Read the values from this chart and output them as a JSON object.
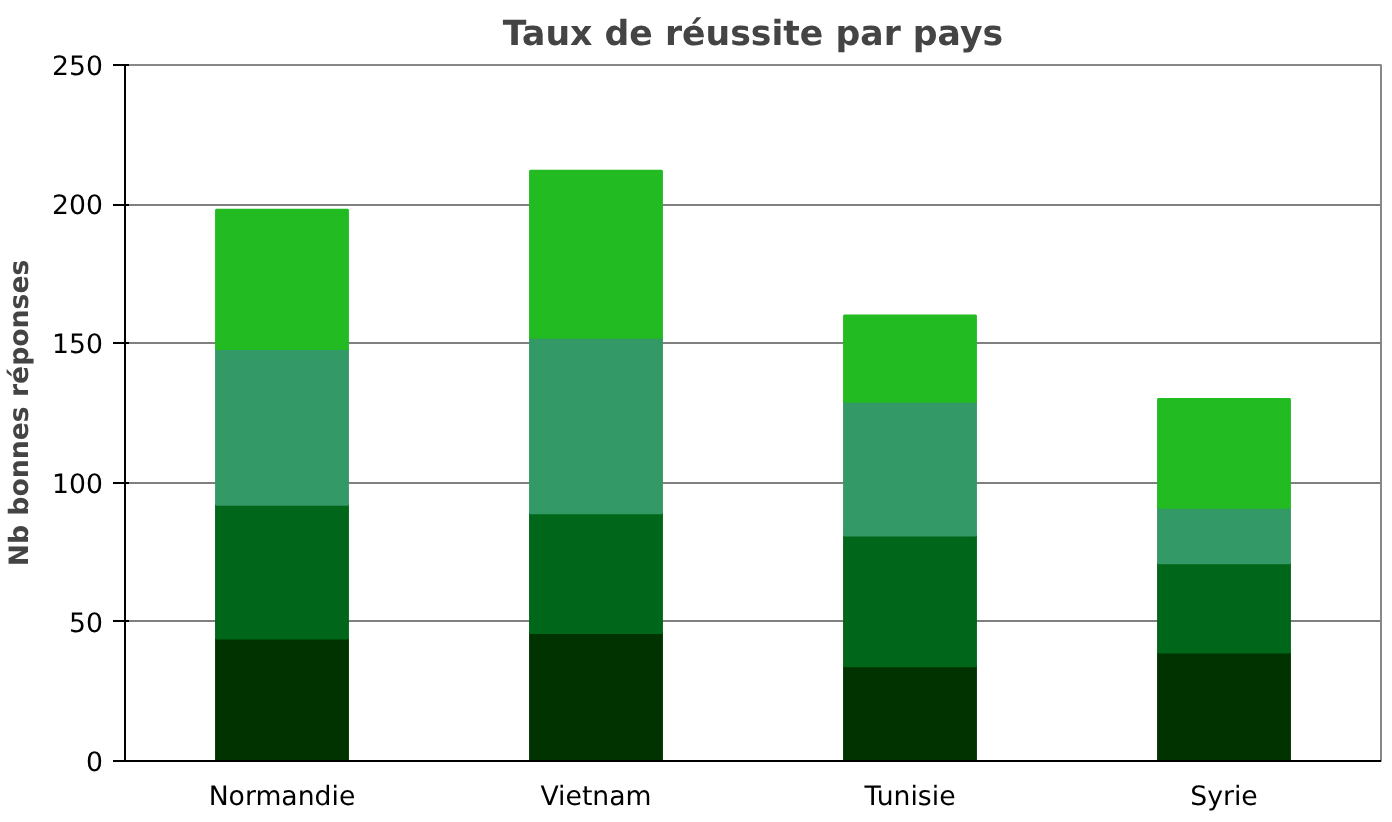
{
  "chart_data": {
    "type": "bar",
    "title": "Taux de réussite par pays",
    "ylabel": "Nb bonnes réponses",
    "categories": [
      "Normandie",
      "Vietnam",
      "Tunisie",
      "Syrie"
    ],
    "stacked": true,
    "ylim": [
      0,
      250
    ],
    "yticks": [
      0,
      50,
      100,
      150,
      200,
      250
    ],
    "grid": "y",
    "series": [
      {
        "color": "#003300",
        "values": [
          44,
          46,
          34,
          39
        ]
      },
      {
        "color": "#006619",
        "values": [
          48,
          43,
          47,
          32
        ]
      },
      {
        "color": "#339966",
        "values": [
          56,
          63,
          48,
          20
        ]
      },
      {
        "color": "#22bb22",
        "values": [
          50,
          60,
          31,
          39
        ]
      }
    ]
  }
}
